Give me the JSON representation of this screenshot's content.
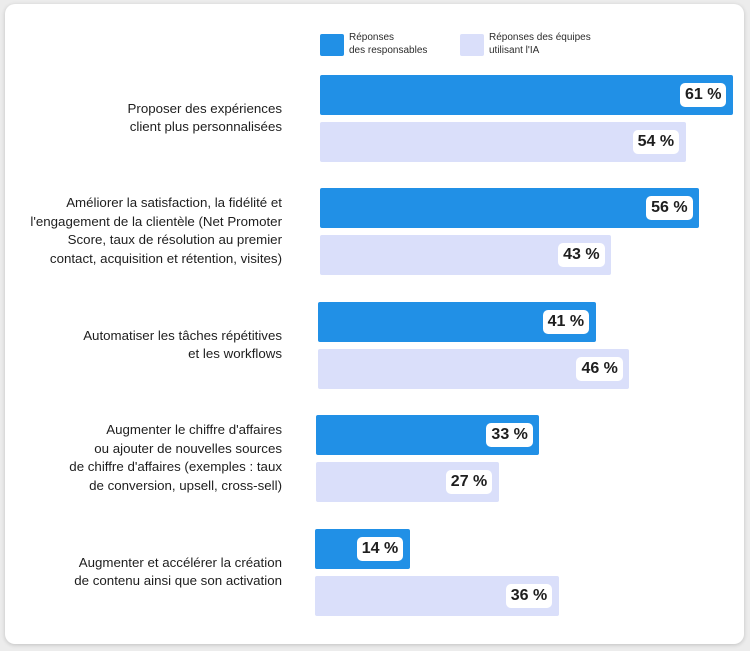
{
  "chart_data": {
    "type": "bar",
    "orientation": "horizontal",
    "categories": [
      "Proposer des expériences\nclient plus personnalisées",
      "Améliorer la satisfaction, la fidélité et\nl'engagement de la clientèle (Net Promoter\nScore, taux de résolution au premier\ncontact, acquisition et rétention, visites)",
      "Automatiser les tâches répétitives\net les workflows",
      "Augmenter le chiffre d'affaires\nou ajouter de nouvelles sources\nde chiffre d'affaires (exemples : taux\nde conversion, upsell, cross-sell)",
      "Augmenter et accélérer la création\nde contenu ainsi que son activation"
    ],
    "series": [
      {
        "name": "Réponses\ndes responsables",
        "color": "#2190e6",
        "values": [
          61,
          56,
          41,
          33,
          14
        ]
      },
      {
        "name": "Réponses des équipes\nutilisant l'IA",
        "color": "#dadffa",
        "values": [
          54,
          43,
          46,
          27,
          36
        ]
      }
    ],
    "value_suffix": " %",
    "xlim": [
      0,
      61
    ],
    "legend_position": "top",
    "grid": false
  }
}
